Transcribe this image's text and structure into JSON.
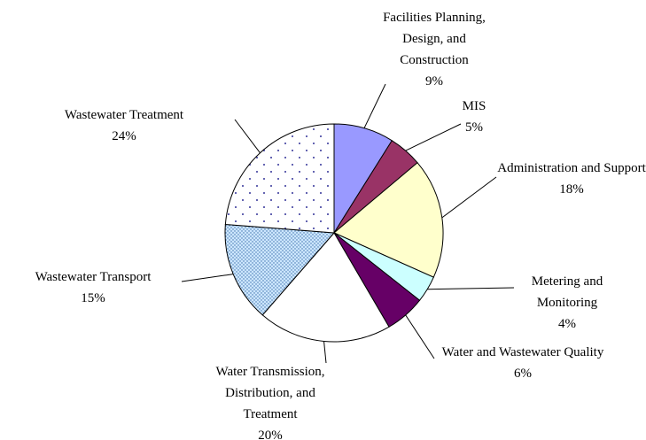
{
  "chart_data": {
    "type": "pie",
    "categories": [
      "Facilities Planning, Design, and Construction",
      "MIS",
      "Administration and Support",
      "Metering and Monitoring",
      "Water and Wastewater Quality",
      "Water Transmission, Distribution, and Treatment",
      "Wastewater Transport",
      "Wastewater Treatment"
    ],
    "values": [
      9,
      5,
      18,
      4,
      6,
      20,
      15,
      24
    ],
    "value_labels": [
      "9%",
      "5%",
      "18%",
      "4%",
      "6%",
      "20%",
      "15%",
      "24%"
    ],
    "colors": [
      "#9999ff",
      "#993366",
      "#ffffcc",
      "#ccffff",
      "#660066",
      "#ffffff",
      "#cce6ff",
      "#ffffff"
    ],
    "hatches": {
      "6": "fine-dots",
      "7": "sparse-dots"
    }
  }
}
